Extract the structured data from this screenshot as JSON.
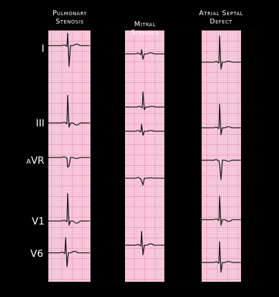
{
  "columns": [
    {
      "title": [
        "Pulmonary",
        "Stenosis"
      ]
    },
    {
      "title": [
        "Mitral",
        "Stenosis"
      ]
    },
    {
      "title": [
        "Atrial Septal",
        "Defect"
      ]
    }
  ],
  "leads": [
    "I",
    "III",
    "aVR",
    "V1",
    "V6"
  ]
}
